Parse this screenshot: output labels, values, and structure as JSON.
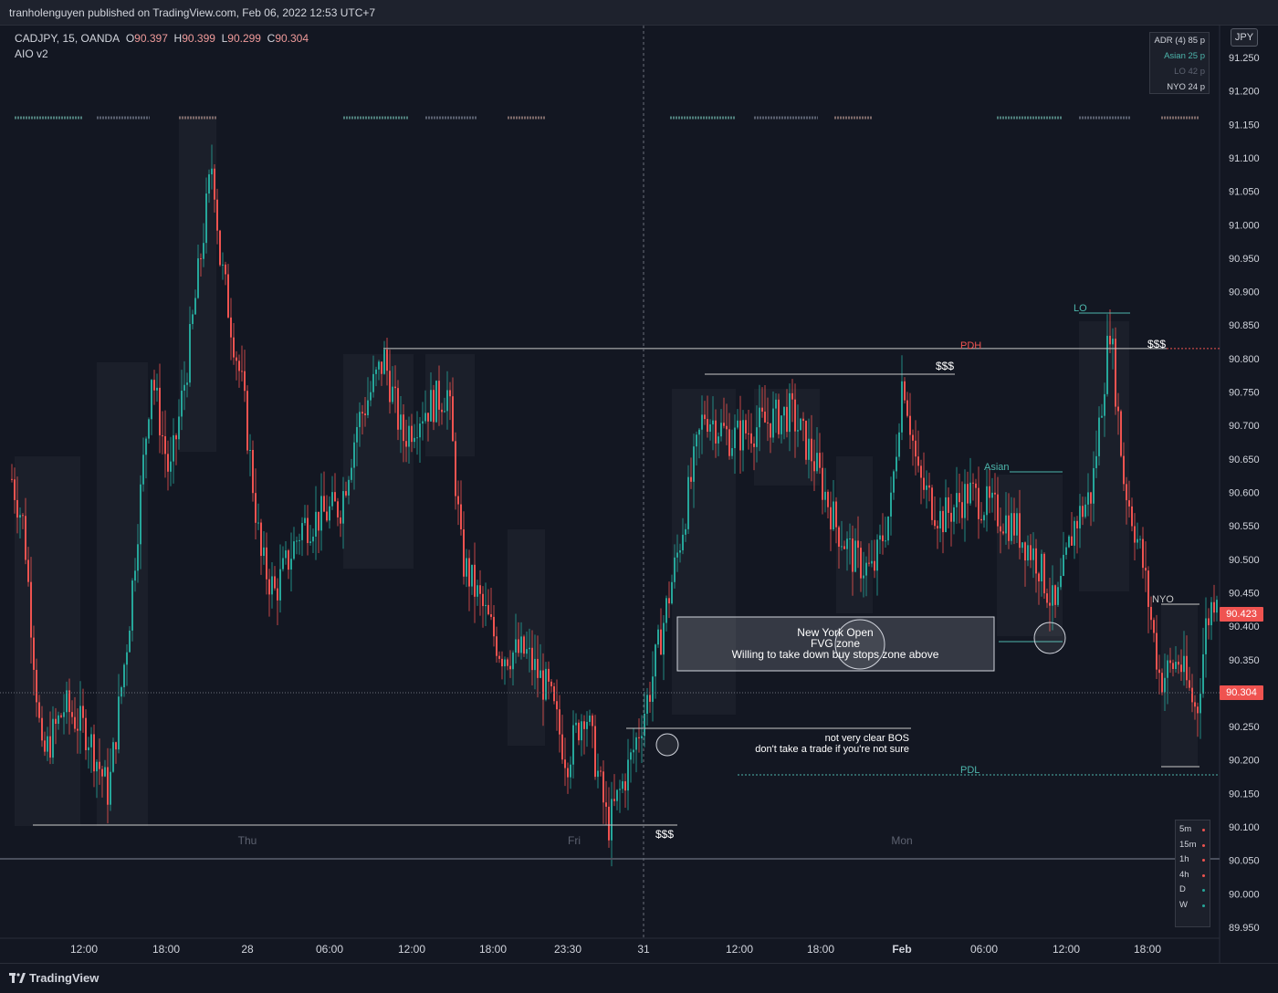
{
  "header": {
    "published_text": "tranholenguyen published on TradingView.com, Feb 06, 2022 12:53 UTC+7"
  },
  "legend": {
    "symbol": "CADJPY, 15, OANDA",
    "o_label": "O",
    "o_value": "90.397",
    "h_label": "H",
    "h_value": "90.399",
    "l_label": "L",
    "l_value": "90.299",
    "c_label": "C",
    "c_value": "90.304",
    "indicator": "AIO v2"
  },
  "currency_badge": "JPY",
  "adr_panel": {
    "rows": [
      {
        "label": "ADR (4)",
        "value": "85 p",
        "color": "#d1d4dc"
      },
      {
        "label": "Asian",
        "value": "25 p",
        "color": "#4db6ac"
      },
      {
        "label": "LO",
        "value": "42 p",
        "color": "#5d6270"
      },
      {
        "label": "NYO",
        "value": "24 p",
        "color": "#d1d4dc"
      }
    ]
  },
  "timeframe_panel": {
    "rows": [
      {
        "label": "5m",
        "color": "#ef5350"
      },
      {
        "label": "15m",
        "color": "#ef5350"
      },
      {
        "label": "1h",
        "color": "#ef5350"
      },
      {
        "label": "4h",
        "color": "#ef5350"
      },
      {
        "label": "D",
        "color": "#26a69a"
      },
      {
        "label": "W",
        "color": "#26a69a"
      }
    ]
  },
  "price_axis": {
    "labels": [
      "91.250",
      "91.200",
      "91.150",
      "91.100",
      "91.050",
      "91.000",
      "90.950",
      "90.900",
      "90.850",
      "90.800",
      "90.750",
      "90.700",
      "90.650",
      "90.600",
      "90.550",
      "90.500",
      "90.450",
      "90.400",
      "90.350",
      "90.300",
      "90.250",
      "90.200",
      "90.150",
      "90.100",
      "90.050",
      "90.000",
      "89.950"
    ],
    "current_price": "90.304",
    "current_price_color": "#ef5350",
    "marker_price": "90.423",
    "marker_price_color": "#ef5350"
  },
  "time_axis": {
    "labels": [
      "12:00",
      "18:00",
      "28",
      "06:00",
      "12:00",
      "18:00",
      "23:30",
      "31",
      "12:00",
      "18:00",
      "Feb",
      "06:00",
      "12:00",
      "18:00"
    ],
    "bold_labels": [
      "Feb"
    ]
  },
  "day_watermarks": [
    "Thu",
    "Fri",
    "Mon"
  ],
  "annotations": {
    "pdh": "PDH",
    "lo": "LO",
    "asian": "Asian",
    "nyo": "NYO",
    "pdl": "PDL",
    "liquidity_top_1": "$$$",
    "liquidity_top_2": "$$$",
    "liquidity_bottom": "$$$",
    "fvg_line_1": "New York Open",
    "fvg_line_2": "FVG zone",
    "fvg_line_3": "Willing to take down buy stops zone above",
    "bos_line_1": "not very clear BOS",
    "bos_line_2": "don't take a trade if you're not sure"
  },
  "chart_data": {
    "type": "candlestick",
    "symbol": "CADJPY",
    "interval": "15",
    "ylim": [
      89.95,
      91.25
    ],
    "last_close": 90.304,
    "up_color": "#26a69a",
    "down_color": "#ef5350",
    "levels": {
      "pdh": 90.815,
      "pdl": 90.18,
      "range_high": 90.815,
      "range_low": 90.105
    }
  },
  "footer": {
    "brand": "TradingView"
  }
}
